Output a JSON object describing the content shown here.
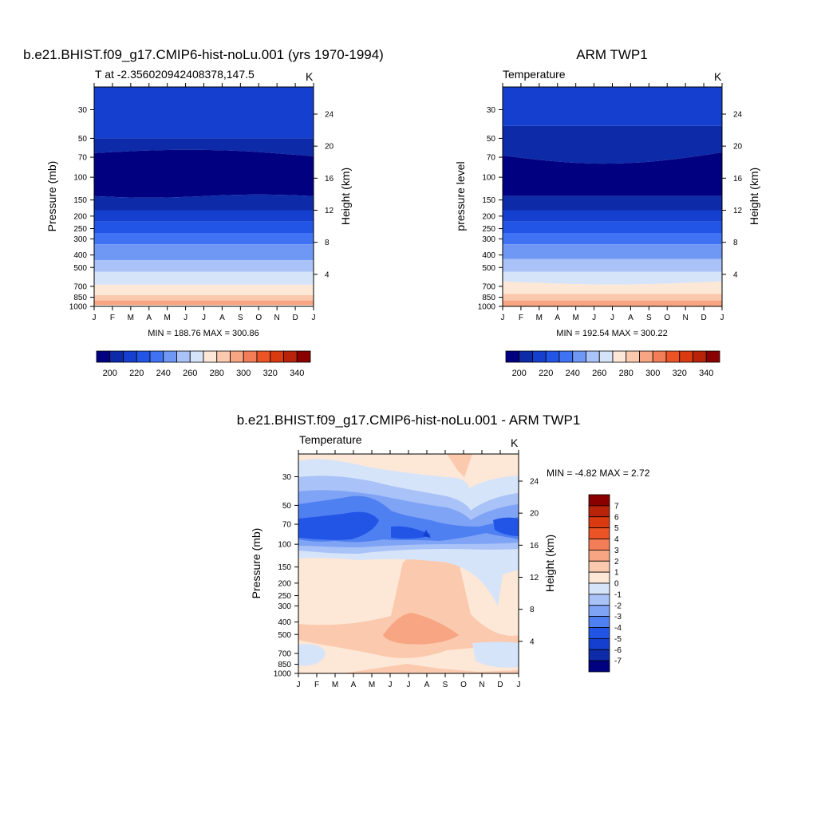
{
  "colorbar_warm_cool": {
    "levels": [
      200,
      220,
      240,
      260,
      280,
      300,
      320,
      340
    ],
    "colors": [
      "#000080",
      "#0d2aa8",
      "#1540cf",
      "#2255e6",
      "#3f73f3",
      "#6f98f5",
      "#a9c2f7",
      "#d6e4fa",
      "#fde7d6",
      "#fbc9ad",
      "#f7a582",
      "#f27d56",
      "#ec5426",
      "#d93a10",
      "#b8230a",
      "#8a0000"
    ]
  },
  "diff_colorbar": {
    "labels": [
      "7",
      "6",
      "5",
      "4",
      "3",
      "2",
      "1",
      "0",
      "-1",
      "-2",
      "-3",
      "-4",
      "-5",
      "-6",
      "-7"
    ],
    "colors": [
      "#8a0000",
      "#b8230a",
      "#d93a10",
      "#ec5426",
      "#f27d56",
      "#f7a582",
      "#fbc9ad",
      "#fde7d6",
      "#d6e4fa",
      "#a9c2f7",
      "#7fa4f5",
      "#4f80f2",
      "#2255e6",
      "#1540cf",
      "#0d2aa8",
      "#000080"
    ]
  },
  "chart_data": [
    {
      "type": "heatmap",
      "title": "b.e21.BHIST.f09_g17.CMIP6-hist-noLu.001 (yrs 1970-1994)",
      "subtitle_left": "T at -2.356020942408378,147.5",
      "subtitle_right": "K",
      "ylabel": "Pressure (mb)",
      "ylabel_right": "Height (km)",
      "x_ticks": [
        "J",
        "F",
        "M",
        "A",
        "M",
        "J",
        "J",
        "A",
        "S",
        "O",
        "N",
        "D",
        "J"
      ],
      "y_ticks": [
        "30",
        "50",
        "70",
        "100",
        "150",
        "200",
        "250",
        "300",
        "400",
        "500",
        "700",
        "850",
        "1000"
      ],
      "y_right_ticks": [
        "24",
        "20",
        "16",
        "12",
        "8",
        "4"
      ],
      "stats": "MIN = 188.76 MAX = 300.86",
      "bands": [
        {
          "p": [
            10,
            50
          ],
          "color": "#1540cf"
        },
        {
          "p": [
            50,
            65
          ],
          "color": "#0d2aa8"
        },
        {
          "p": [
            65,
            140
          ],
          "color": "#000080"
        },
        {
          "p": [
            140,
            180
          ],
          "color": "#0d2aa8"
        },
        {
          "p": [
            180,
            220
          ],
          "color": "#1540cf"
        },
        {
          "p": [
            220,
            270
          ],
          "color": "#2255e6"
        },
        {
          "p": [
            270,
            330
          ],
          "color": "#3f73f3"
        },
        {
          "p": [
            330,
            440
          ],
          "color": "#6f98f5"
        },
        {
          "p": [
            440,
            540
          ],
          "color": "#a9c2f7"
        },
        {
          "p": [
            540,
            680
          ],
          "color": "#d6e4fa"
        },
        {
          "p": [
            680,
            820
          ],
          "color": "#fde7d6"
        },
        {
          "p": [
            820,
            900
          ],
          "color": "#fbc9ad"
        },
        {
          "p": [
            900,
            980
          ],
          "color": "#f7a582"
        },
        {
          "p": [
            980,
            1000
          ],
          "color": "#ffffff"
        }
      ]
    },
    {
      "type": "heatmap",
      "title": "ARM TWP1",
      "subtitle_left": "Temperature",
      "subtitle_right": "K",
      "ylabel": "pressure level",
      "ylabel_right": "Height (km)",
      "x_ticks": [
        "J",
        "F",
        "M",
        "A",
        "M",
        "J",
        "J",
        "A",
        "S",
        "O",
        "N",
        "D",
        "J"
      ],
      "y_ticks": [
        "30",
        "50",
        "70",
        "100",
        "150",
        "200",
        "250",
        "300",
        "400",
        "500",
        "700",
        "850",
        "1000"
      ],
      "y_right_ticks": [
        "24",
        "20",
        "16",
        "12",
        "8",
        "4"
      ],
      "stats": "MIN = 192.54 MAX = 300.22",
      "bands": [
        {
          "p": [
            10,
            40
          ],
          "color": "#1540cf"
        },
        {
          "p": [
            40,
            68
          ],
          "color": "#0d2aa8"
        },
        {
          "p": [
            68,
            140
          ],
          "color": "#000080"
        },
        {
          "p": [
            140,
            180
          ],
          "color": "#0d2aa8"
        },
        {
          "p": [
            180,
            220
          ],
          "color": "#1540cf"
        },
        {
          "p": [
            220,
            270
          ],
          "color": "#2255e6"
        },
        {
          "p": [
            270,
            330
          ],
          "color": "#3f73f3"
        },
        {
          "p": [
            330,
            430
          ],
          "color": "#6f98f5"
        },
        {
          "p": [
            430,
            540
          ],
          "color": "#a9c2f7"
        },
        {
          "p": [
            540,
            640
          ],
          "color": "#d6e4fa"
        },
        {
          "p": [
            640,
            800
          ],
          "color": "#fde7d6"
        },
        {
          "p": [
            800,
            900
          ],
          "color": "#fbc9ad"
        },
        {
          "p": [
            900,
            1000
          ],
          "color": "#f7a582"
        }
      ]
    },
    {
      "type": "heatmap",
      "title": "b.e21.BHIST.f09_g17.CMIP6-hist-noLu.001 - ARM TWP1",
      "subtitle_left": "Temperature",
      "subtitle_right": "K",
      "ylabel": "Pressure (mb)",
      "ylabel_right": "Height (km)",
      "x_ticks": [
        "J",
        "F",
        "M",
        "A",
        "M",
        "J",
        "J",
        "A",
        "S",
        "O",
        "N",
        "D",
        "J"
      ],
      "y_ticks": [
        "30",
        "50",
        "70",
        "100",
        "150",
        "200",
        "250",
        "300",
        "400",
        "500",
        "700",
        "850",
        "1000"
      ],
      "y_right_ticks": [
        "24",
        "20",
        "16",
        "12",
        "8",
        "4"
      ],
      "stats": "MIN =  -4.82 MAX =   2.72",
      "background": "#fde7d6"
    }
  ]
}
